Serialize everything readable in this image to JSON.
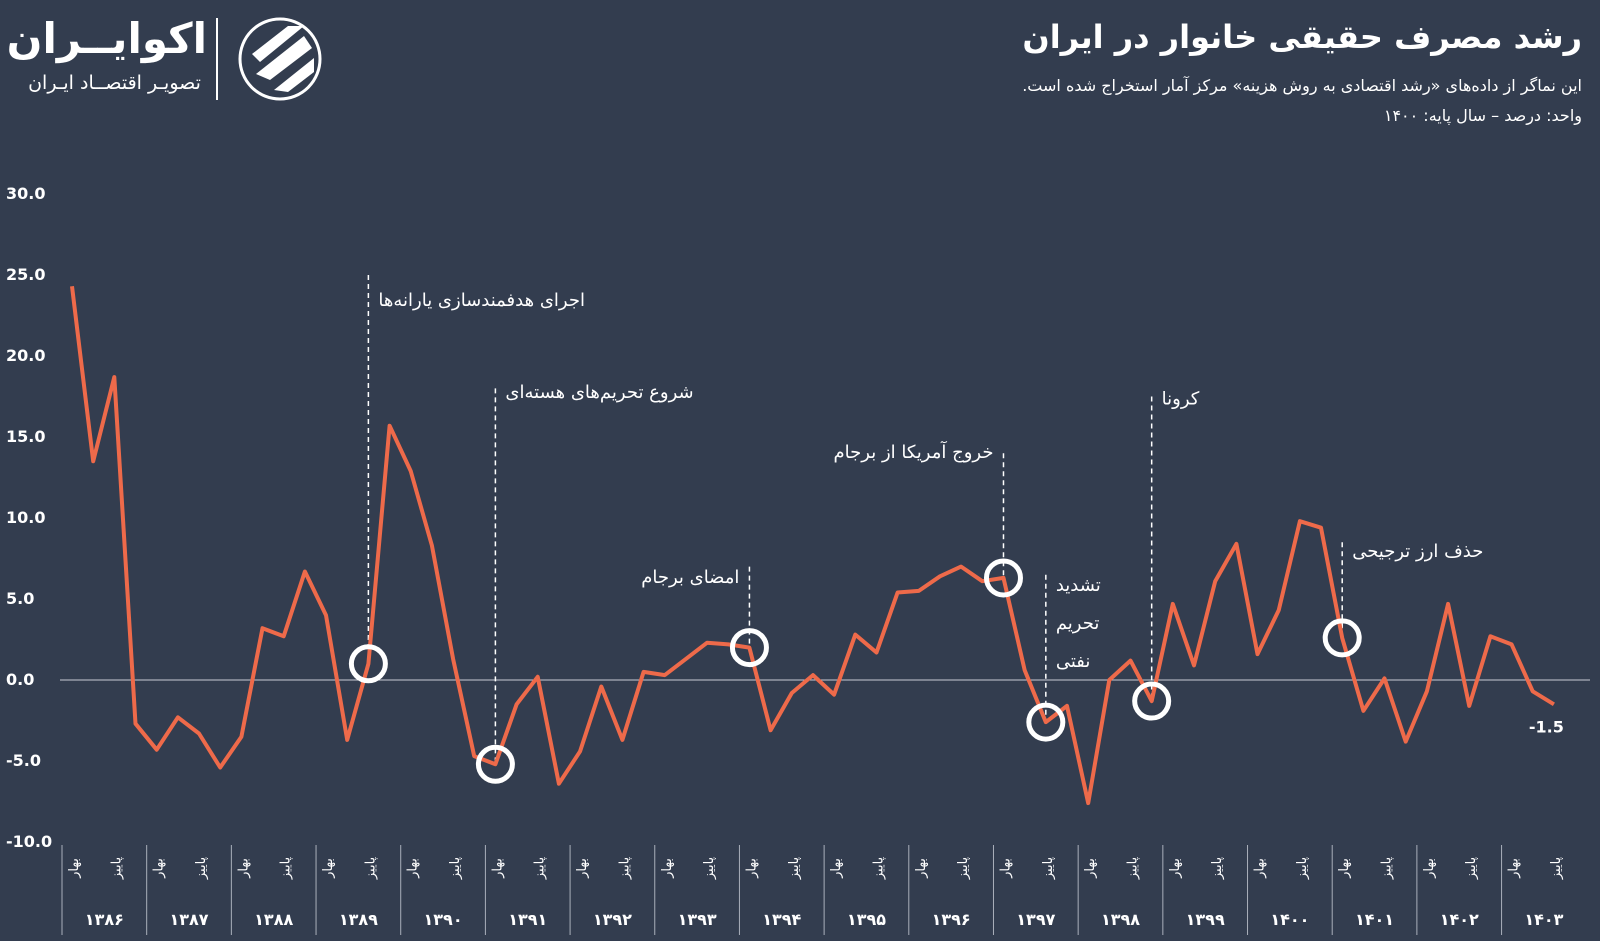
{
  "header": {
    "title": "رشد مصرف حقیقی خانوار در ایران",
    "subtitle": "این نماگر از داده‌های «رشد اقتصادی به روش هزینه» مرکز آمار استخراج شده است.",
    "unit": "واحد: درصد – سال پایه: ۱۴۰۰"
  },
  "logo": {
    "name": "اکوایــران",
    "tagline": "تصویـر اقتصــاد ایـران",
    "icon": "ecoiran-logo-icon"
  },
  "colors": {
    "background": "#333d4f",
    "line": "#ee6a4a",
    "text": "#ffffff"
  },
  "chart_data": {
    "type": "line",
    "ylim": [
      -10,
      30
    ],
    "yticks": [
      "30.0",
      "25.0",
      "20.0",
      "15.0",
      "10.0",
      "5.0",
      "0.0",
      "-5.0",
      "-10.0"
    ],
    "x_quarter_labels": [
      "بهار",
      "پاییز"
    ],
    "years": [
      "۱۳۸۶",
      "۱۳۸۷",
      "۱۳۸۸",
      "۱۳۸۹",
      "۱۳۹۰",
      "۱۳۹۱",
      "۱۳۹۲",
      "۱۳۹۳",
      "۱۳۹۴",
      "۱۳۹۵",
      "۱۳۹۶",
      "۱۳۹۷",
      "۱۳۹۸",
      "۱۳۹۹",
      "۱۴۰۰",
      "۱۴۰۱",
      "۱۴۰۲",
      "۱۴۰۳"
    ],
    "series": [
      {
        "values": [
          24.3,
          13.5,
          18.7,
          -2.7,
          -4.3,
          -2.3,
          -3.3,
          -5.4,
          -3.5,
          3.2,
          2.7,
          6.7,
          4.0,
          -3.7,
          1.0,
          15.7,
          12.9,
          8.3,
          1.3,
          -4.7,
          -5.2,
          -1.5,
          0.2,
          -6.4,
          -4.4,
          -0.4,
          -3.7,
          0.5,
          0.3,
          1.3,
          2.3,
          2.2,
          2.0,
          -3.1,
          -0.8,
          0.3,
          -0.9,
          2.8,
          1.7,
          5.4,
          5.5,
          6.4,
          7.0,
          6.1,
          6.3,
          0.6,
          -2.6,
          -1.6,
          -7.6,
          0.0,
          1.2,
          -1.3,
          4.7,
          0.9,
          6.1,
          8.4,
          1.6,
          4.3,
          9.8,
          9.4,
          2.6,
          -1.9,
          0.1,
          -3.8,
          -0.7,
          4.7,
          -1.6,
          2.7,
          2.2,
          -0.7,
          -1.5
        ]
      }
    ],
    "end_label": "-1.5",
    "annotations": [
      {
        "label": "اجرای هدفمندسازی یارانه‌ها",
        "index": 14,
        "line_top": 25.0,
        "text_y": 23.1,
        "side": "right"
      },
      {
        "label": "شروع تحریم‌های هسته‌ای",
        "index": 20,
        "line_top": 18.0,
        "text_y": 17.4,
        "side": "right"
      },
      {
        "label": "امضای برجام",
        "index": 32,
        "line_top": 7.0,
        "text_y": 6.0,
        "side": "left"
      },
      {
        "label": "خروج آمریکا از برجام",
        "index": 44,
        "line_top": 14.0,
        "text_y": 13.7,
        "side": "left"
      },
      {
        "label": "تشدید تحریم نفتی",
        "index": 46,
        "line_top": 6.5,
        "text_y": 5.5,
        "side": "right",
        "lines": [
          "تشدید",
          "تحریم",
          "نفتی"
        ]
      },
      {
        "label": "کرونا",
        "index": 51,
        "line_top": 17.5,
        "text_y": 17.0,
        "side": "right"
      },
      {
        "label": "حذف ارز ترجیحی",
        "index": 60,
        "line_top": 8.5,
        "text_y": 7.6,
        "side": "right"
      }
    ]
  }
}
